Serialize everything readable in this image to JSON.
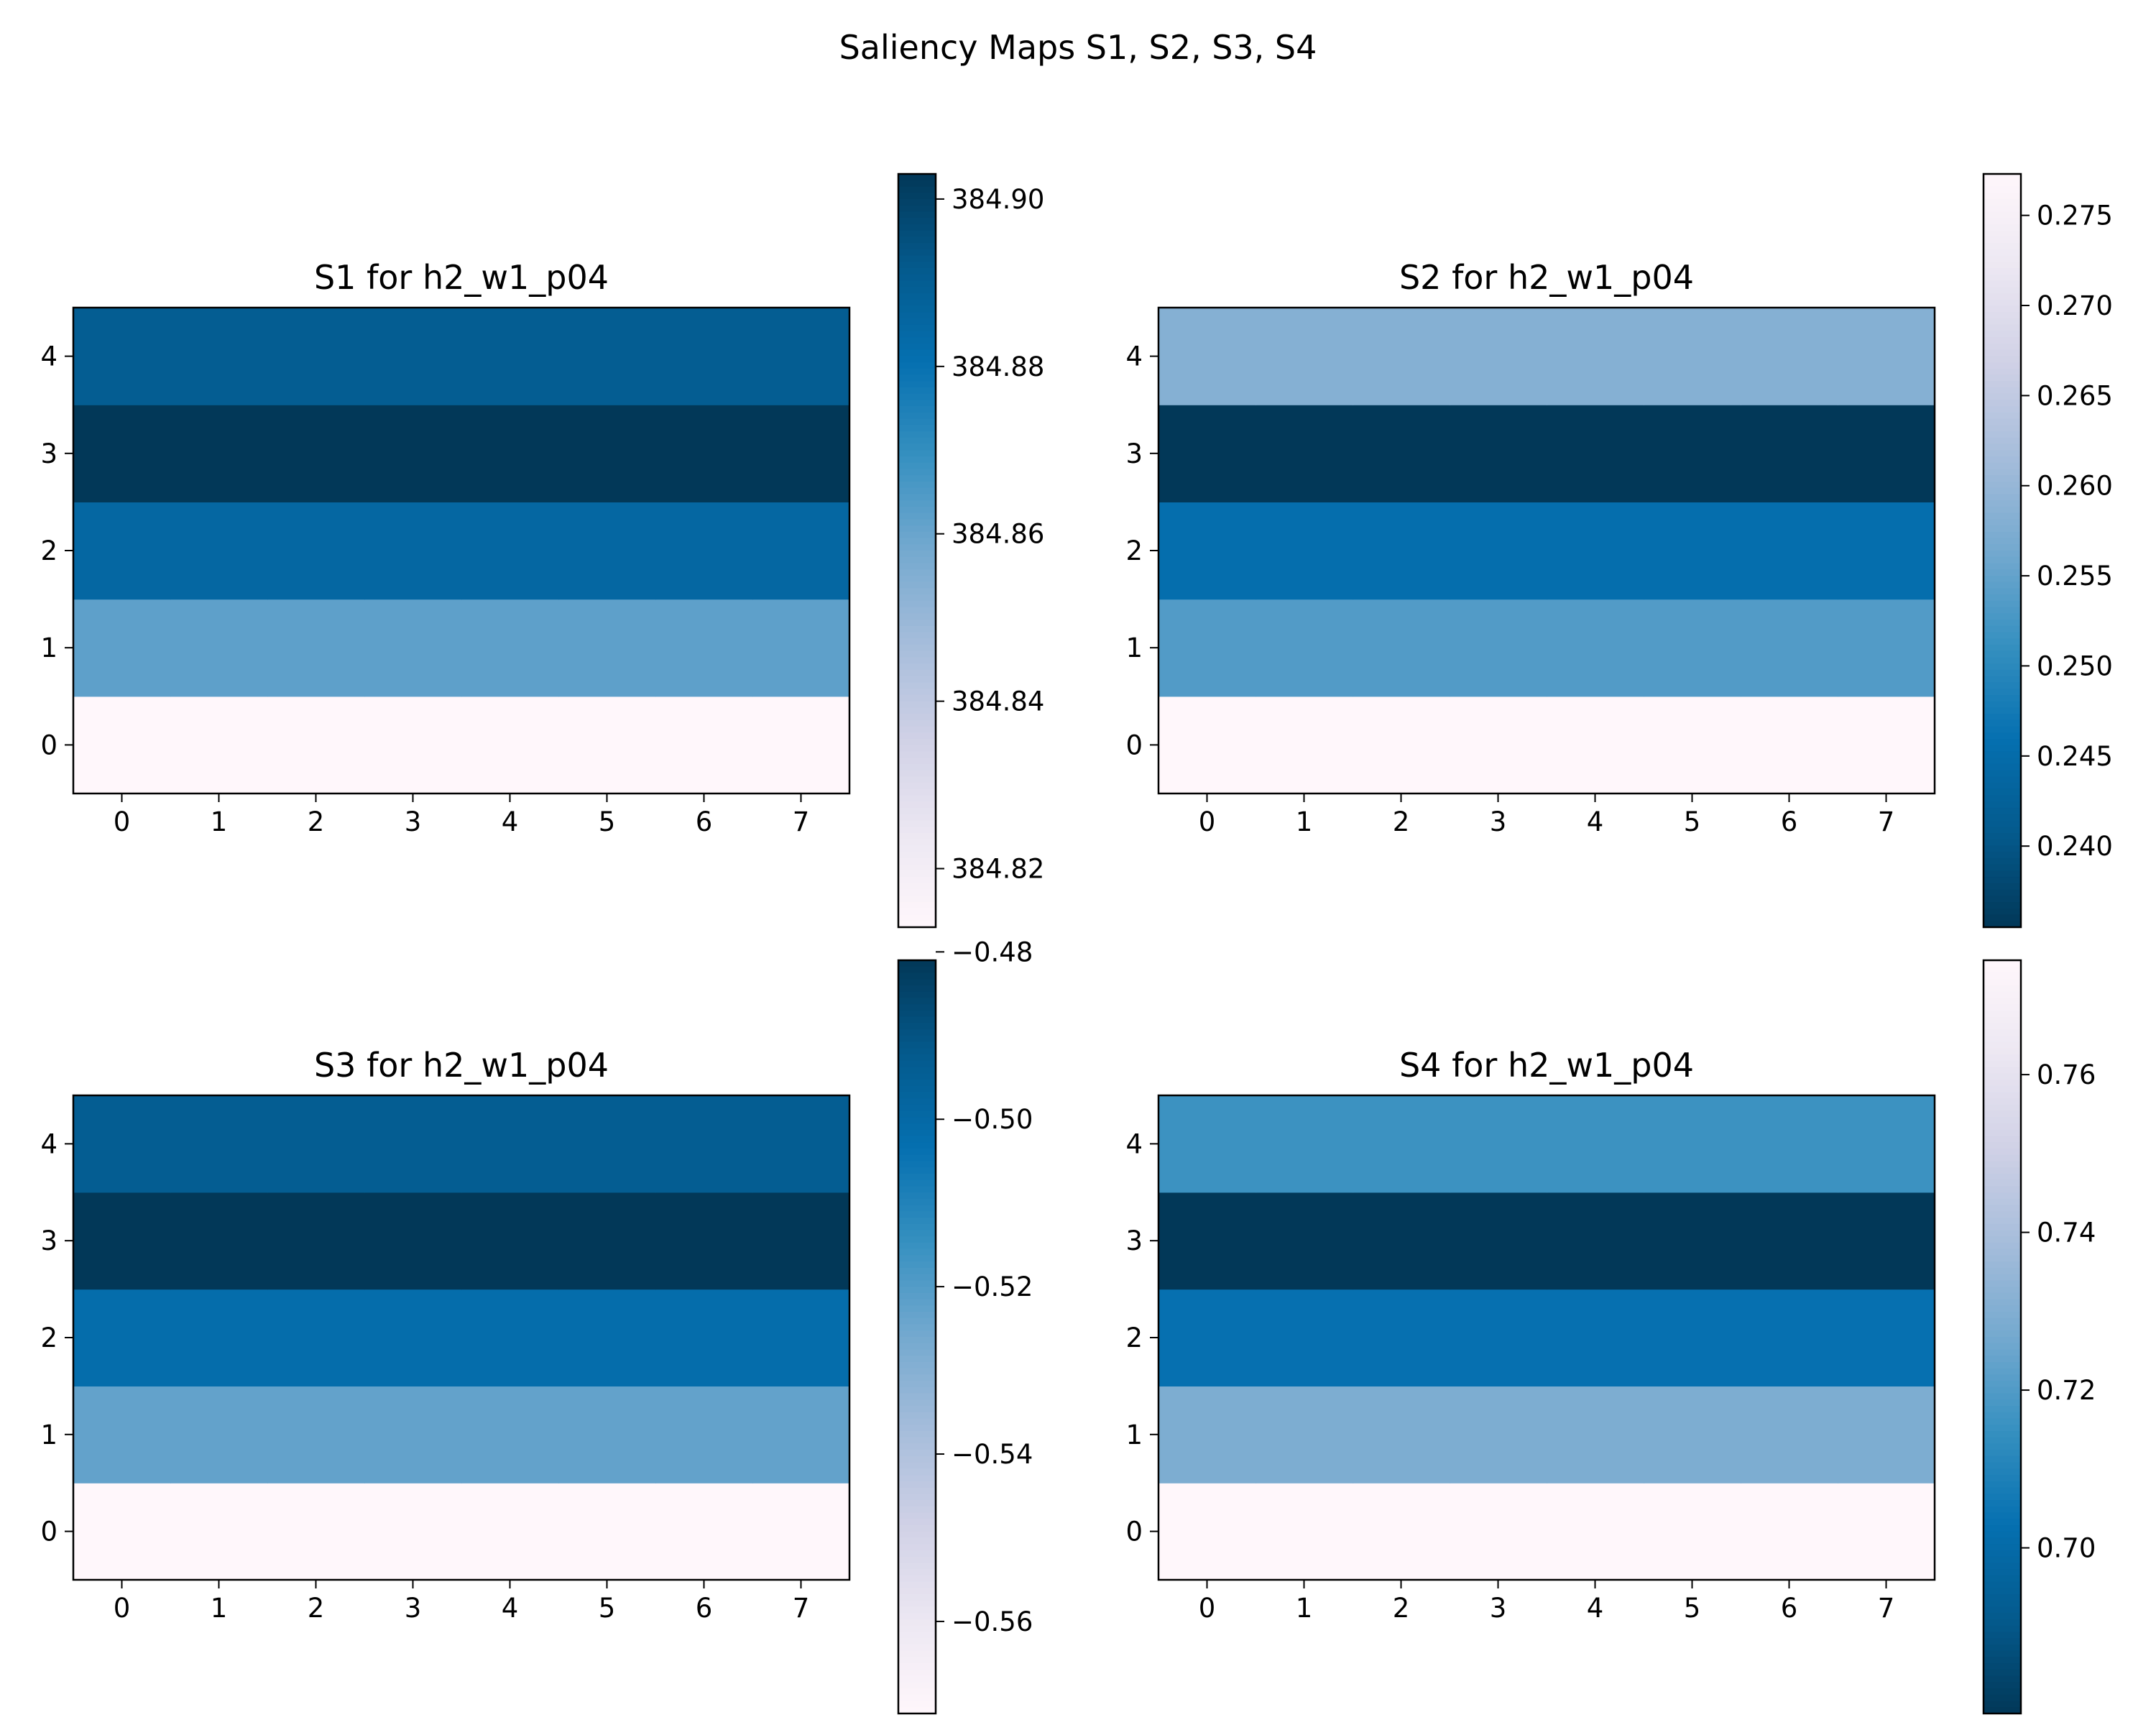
{
  "title": "Saliency Maps S1, S2, S3, S4",
  "chart_data": [
    {
      "type": "heatmap",
      "title": "S1 for h2_w1_p04",
      "colormap": "PuBu",
      "x_ticks": [
        "0",
        "1",
        "2",
        "3",
        "4",
        "5",
        "6",
        "7"
      ],
      "y_ticks": [
        "0",
        "1",
        "2",
        "3",
        "4"
      ],
      "xlim": [
        -0.5,
        7.5
      ],
      "ylim": [
        -0.5,
        4.5
      ],
      "rows": [
        {
          "y": 0,
          "value": 384.813
        },
        {
          "y": 1,
          "value": 384.862
        },
        {
          "y": 2,
          "value": 384.885
        },
        {
          "y": 3,
          "value": 384.903
        },
        {
          "y": 4,
          "value": 384.89
        }
      ],
      "colorbar": {
        "min": 384.813,
        "max": 384.903,
        "ticks": [
          "384.82",
          "384.84",
          "384.86",
          "384.88",
          "384.90"
        ],
        "tick_values": [
          384.82,
          384.84,
          384.86,
          384.88,
          384.9
        ]
      }
    },
    {
      "type": "heatmap",
      "title": "S2 for h2_w1_p04",
      "colormap": "PuBu_r",
      "x_ticks": [
        "0",
        "1",
        "2",
        "3",
        "4",
        "5",
        "6",
        "7"
      ],
      "y_ticks": [
        "0",
        "1",
        "2",
        "3",
        "4"
      ],
      "xlim": [
        -0.5,
        7.5
      ],
      "ylim": [
        -0.5,
        4.5
      ],
      "rows": [
        {
          "y": 0,
          "value": 0.2773
        },
        {
          "y": 1,
          "value": 0.2535
        },
        {
          "y": 2,
          "value": 0.2455
        },
        {
          "y": 3,
          "value": 0.2355
        },
        {
          "y": 4,
          "value": 0.2582
        }
      ],
      "colorbar": {
        "min": 0.2355,
        "max": 0.2773,
        "ticks": [
          "0.240",
          "0.245",
          "0.250",
          "0.255",
          "0.260",
          "0.265",
          "0.270",
          "0.275"
        ],
        "tick_values": [
          0.24,
          0.245,
          0.25,
          0.255,
          0.26,
          0.265,
          0.27,
          0.275
        ]
      }
    },
    {
      "type": "heatmap",
      "title": "S3 for h2_w1_p04",
      "colormap": "PuBu",
      "x_ticks": [
        "0",
        "1",
        "2",
        "3",
        "4",
        "5",
        "6",
        "7"
      ],
      "y_ticks": [
        "0",
        "1",
        "2",
        "3",
        "4"
      ],
      "xlim": [
        -0.5,
        7.5
      ],
      "ylim": [
        -0.5,
        4.5
      ],
      "rows": [
        {
          "y": 0,
          "value": -0.571
        },
        {
          "y": 1,
          "value": -0.523
        },
        {
          "y": 2,
          "value": -0.502
        },
        {
          "y": 3,
          "value": -0.481
        },
        {
          "y": 4,
          "value": -0.494
        }
      ],
      "colorbar": {
        "min": -0.571,
        "max": -0.481,
        "ticks": [
          "−0.56",
          "−0.54",
          "−0.52",
          "−0.50",
          "−0.48"
        ],
        "tick_values": [
          -0.56,
          -0.54,
          -0.52,
          -0.5,
          -0.48
        ]
      }
    },
    {
      "type": "heatmap",
      "title": "S4 for h2_w1_p04",
      "colormap": "PuBu_r",
      "x_ticks": [
        "0",
        "1",
        "2",
        "3",
        "4",
        "5",
        "6",
        "7"
      ],
      "y_ticks": [
        "0",
        "1",
        "2",
        "3",
        "4"
      ],
      "xlim": [
        -0.5,
        7.5
      ],
      "ylim": [
        -0.5,
        4.5
      ],
      "rows": [
        {
          "y": 0,
          "value": 0.7745
        },
        {
          "y": 1,
          "value": 0.729
        },
        {
          "y": 2,
          "value": 0.703
        },
        {
          "y": 3,
          "value": 0.679
        },
        {
          "y": 4,
          "value": 0.716
        }
      ],
      "colorbar": {
        "min": 0.679,
        "max": 0.7745,
        "ticks": [
          "0.70",
          "0.72",
          "0.74",
          "0.76"
        ],
        "tick_values": [
          0.7,
          0.72,
          0.74,
          0.76
        ]
      }
    }
  ]
}
